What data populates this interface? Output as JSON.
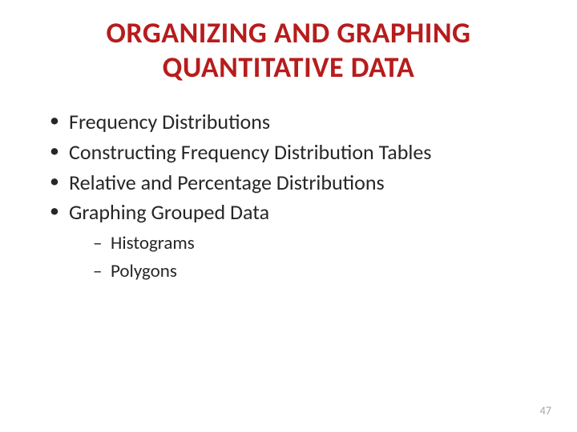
{
  "title": "ORGANIZING AND GRAPHING QUANTITATIVE DATA",
  "bullets": {
    "b0": "Frequency Distributions",
    "b1": "Constructing Frequency Distribution Tables",
    "b2": "Relative and Percentage Distributions",
    "b3": "Graphing Grouped Data",
    "sub0": "Histograms",
    "sub1": "Polygons"
  },
  "pageNumber": "47",
  "colors": {
    "title": "#b71c1c",
    "text": "#262626",
    "pageNum": "#a6a6a6",
    "background": "#ffffff"
  },
  "typography": {
    "titleFontSize": 36,
    "bulletFontSize": 26,
    "subBulletFontSize": 23,
    "pageNumFontSize": 14,
    "fontFamily": "Calibri"
  }
}
